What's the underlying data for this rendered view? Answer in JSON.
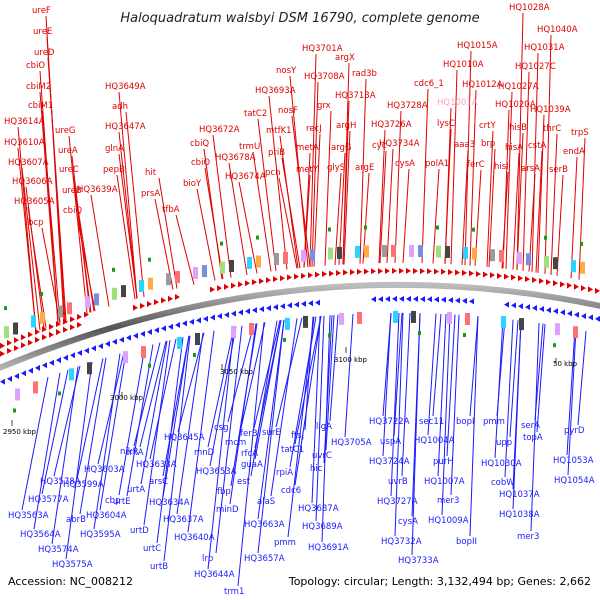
{
  "title": "Haloquadratum walsbyi DSM 16790, complete genome",
  "footer": {
    "accession": "Accession: NC_008212",
    "summary": "Topology: circular; Length: 3,132,494 bp; Genes: 2,662"
  },
  "ticks": [
    "2950 kbp",
    "3000 kbp",
    "3050 kbp",
    "3100 kbp",
    "50 kbp"
  ],
  "colors": {
    "forward": "#e00000",
    "reverse": "#1a1aff",
    "highlight": "#ff9ec8",
    "backbone": "#707070"
  },
  "forward_genes": [
    "ureF",
    "ureE",
    "ureD",
    "cbiO",
    "cbiM2",
    "cbiM1",
    "HQ3614A",
    "HQ3610A",
    "ureG",
    "ureA",
    "HQ3607A",
    "ureC",
    "HQ3606A",
    "ureB",
    "HQ3605A",
    "cbiQ",
    "bcp",
    "HQ3649A",
    "adh",
    "HQ3647A",
    "glnA",
    "pepB",
    "hit",
    "HQ3639A",
    "prsA",
    "tfbA",
    "HQ3701A",
    "argX",
    "nosY",
    "HQ3708A",
    "rad3b",
    "HQ3693A",
    "nosF",
    "grx",
    "HQ3713A",
    "tatC2",
    "mtfK1",
    "recJ",
    "metA",
    "argH",
    "trmU",
    "priB",
    "metY",
    "argG",
    "glyS",
    "HQ3672A",
    "cbiQ",
    "HQ3678A",
    "pcn",
    "cbiO",
    "bioY",
    "HQ3674A",
    "argE",
    "cyc",
    "HQ3728A",
    "HQ3726A",
    "HQ3734A",
    "cysA",
    "polA1",
    "cdc6_1",
    "HQ1010A",
    "HQ1012A",
    "HQ1015A",
    "HQ1028A",
    "HQ1040A",
    "HQ1031A",
    "HQ1027C",
    "HQ1027A",
    "HQ1020A",
    "HQ1039A",
    "lysC",
    "aaa3",
    "brp",
    "crtY",
    "ferC",
    "hisB",
    "hisA",
    "hisI",
    "thrC",
    "trpS",
    "arsA",
    "cstA",
    "endA",
    "serB"
  ],
  "highlight_genes": [
    "HQ1001A"
  ],
  "reverse_genes": [
    "HQ3578A",
    "HQ3577A",
    "HQ3563A",
    "abrB",
    "HQ3564A",
    "HQ3574A",
    "HQ3575A",
    "HQ3599A",
    "HQ3595A",
    "cbp",
    "HQ3603A",
    "nikR",
    "HQ3604A",
    "urtE",
    "urtD",
    "urtC",
    "urtB",
    "urtA",
    "trkA",
    "HQ3633A",
    "arsC",
    "HQ3634A",
    "HQ3637A",
    "HQ3640A",
    "lrp",
    "HQ3644A",
    "trm1",
    "HQ3645A",
    "mnD",
    "fbp",
    "minD",
    "HQ3653A",
    "csg",
    "mcm",
    "ferB",
    "rfcA",
    "guaA",
    "est",
    "alaS",
    "HQ3657A",
    "HQ3663A",
    "surE",
    "tatC1",
    "rpiA",
    "cdc6",
    "pmm",
    "HQ3687A",
    "HQ3689A",
    "HQ3691A",
    "ftsJ",
    "hic",
    "uvrC",
    "ligA",
    "HQ3705A",
    "HQ3722A",
    "uspA",
    "HQ3724A",
    "uvrB",
    "HQ3727A",
    "cysA",
    "HQ3732A",
    "HQ3733A",
    "sec11",
    "HQ1004A",
    "purH",
    "HQ1007A",
    "mer3",
    "HQ1009A",
    "bopI",
    "bopII",
    "pmm",
    "upp",
    "HQ1030A",
    "cobW",
    "HQ1037A",
    "HQ1038A",
    "mer3",
    "serA",
    "topA",
    "pyrD",
    "HQ1053A",
    "HQ1054A"
  ]
}
